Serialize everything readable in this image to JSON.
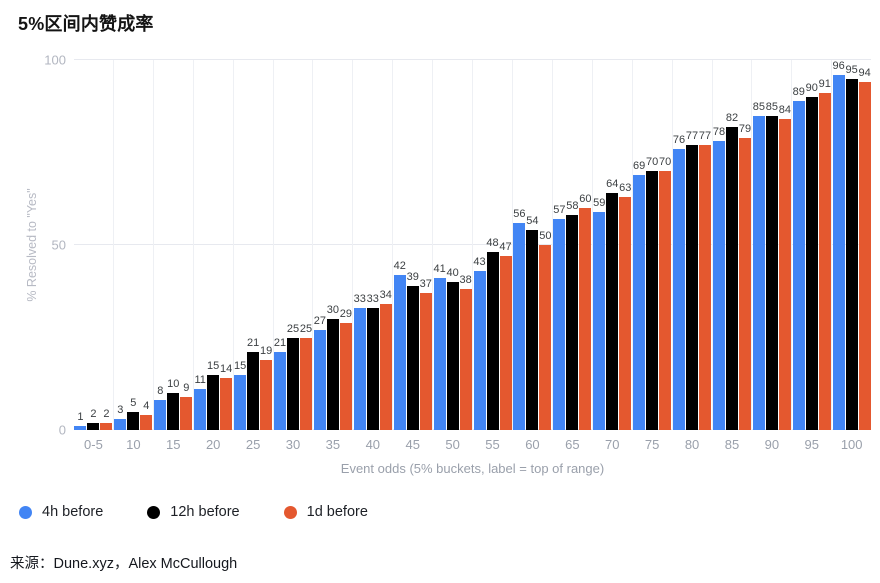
{
  "title": "5%区间内赞成率",
  "source_text": "来源：Dune.xyz，Alex McCullough",
  "chart_data": {
    "type": "bar",
    "title": "5%区间内赞成率",
    "xlabel": "Event odds (5% buckets, label = top of range)",
    "ylabel": "% Resolved to \"Yes\"",
    "ylim": [
      0,
      100
    ],
    "yticks": [
      0,
      50,
      100
    ],
    "grid": "horizontal lines at yticks, vertical separators between category groups",
    "bar_value_labels": true,
    "legend_position": "bottom-left",
    "categories": [
      "0-5",
      "10",
      "15",
      "20",
      "25",
      "30",
      "35",
      "40",
      "45",
      "50",
      "55",
      "60",
      "65",
      "70",
      "75",
      "80",
      "85",
      "90",
      "95",
      "100"
    ],
    "series": [
      {
        "name": "4h before",
        "color": "#4285f4",
        "values": [
          1,
          3,
          8,
          11,
          15,
          21,
          27,
          33,
          42,
          41,
          43,
          56,
          57,
          59,
          69,
          76,
          78,
          85,
          89,
          96
        ]
      },
      {
        "name": "12h before",
        "color": "#000000",
        "values": [
          2,
          5,
          10,
          15,
          21,
          25,
          30,
          33,
          39,
          40,
          48,
          54,
          58,
          64,
          70,
          77,
          82,
          85,
          90,
          95
        ]
      },
      {
        "name": "1d before",
        "color": "#e4582f",
        "values": [
          2,
          4,
          9,
          14,
          19,
          25,
          29,
          34,
          37,
          38,
          47,
          50,
          60,
          63,
          70,
          77,
          79,
          84,
          91,
          94
        ]
      }
    ]
  }
}
